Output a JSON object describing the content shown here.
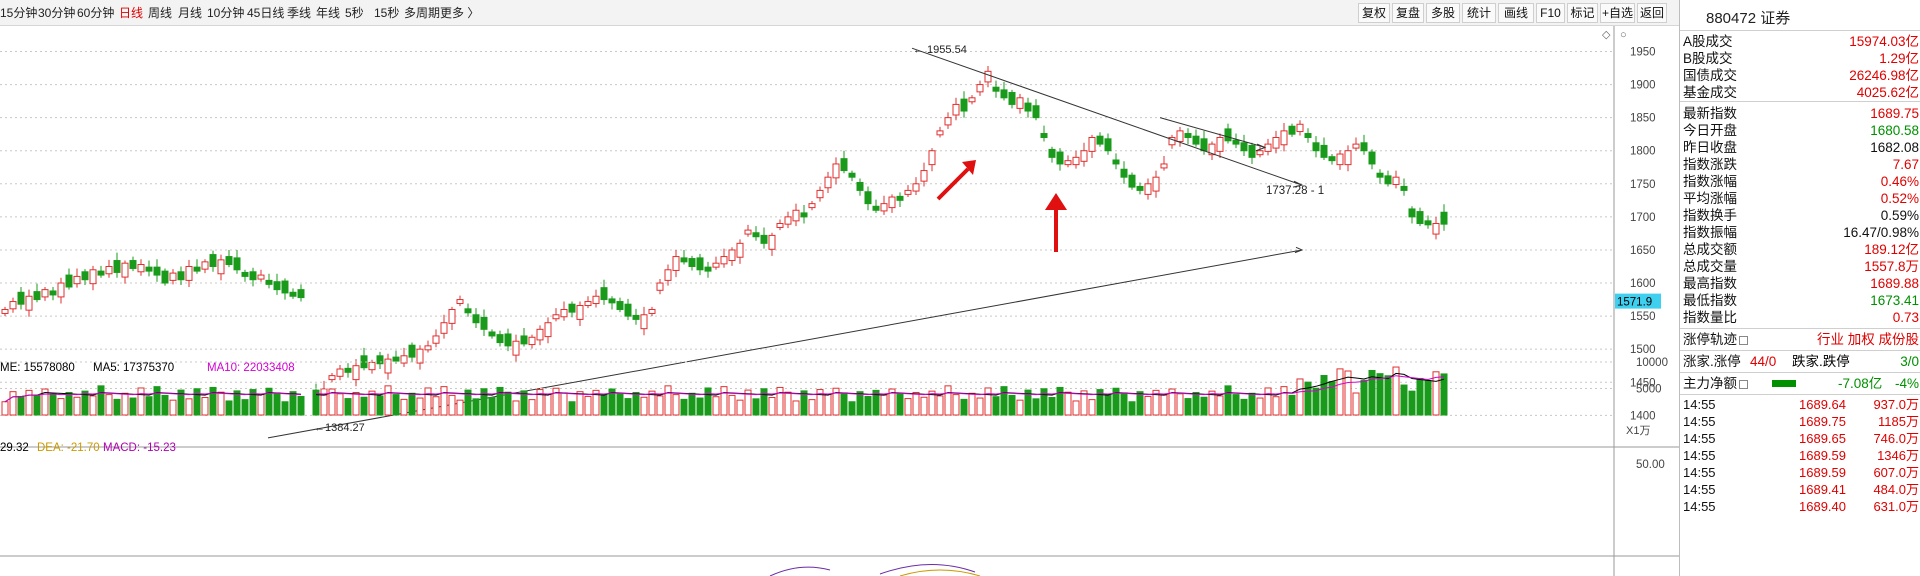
{
  "toolbar": {
    "periods": [
      "15分钟",
      "30分钟",
      "60分钟",
      "日线",
      "周线",
      "月线",
      "10分钟",
      "45日线",
      "季线",
      "年线",
      "5秒",
      "15秒",
      "多周期",
      "更多 〉"
    ],
    "active_period": "日线",
    "buttons": [
      "复权",
      "复盘",
      "多股",
      "统计",
      "画线",
      "F10",
      "标记",
      "+自选",
      "返回"
    ]
  },
  "chart": {
    "price_axis_ticks": [
      "1950",
      "1900",
      "1850",
      "1800",
      "1750",
      "1700",
      "1650",
      "1600",
      "1550",
      "1500",
      "1450",
      "1400"
    ],
    "current_price_label": "1571.9",
    "annotation_high": "1955.54",
    "annotation_low": "1384.27",
    "annotation_right": "1737.28 - 1",
    "volume_legend": {
      "vol": "ME: 15578080",
      "ma5": "MA5: 17375370",
      "ma10": "MA10: 22033408"
    },
    "volume_axis_ticks": [
      "10000",
      "5000"
    ],
    "volume_unit": "X1万",
    "macd_legend": {
      "dif": "29.32",
      "dea": "DEA: -21.70",
      "macd": "MACD: -15.23"
    },
    "macd_axis_tick": "50.00",
    "colors": {
      "up": "#e03030",
      "down": "#1a9a1a",
      "ma5": "#000000",
      "ma10": "#d200d2",
      "annotation_arrow": "#e01010",
      "price_tag": "#3fd0f0"
    }
  },
  "panel": {
    "title": "880472 证券",
    "rows1": [
      {
        "label": "A股成交",
        "value": "15974.03亿",
        "color": "red"
      },
      {
        "label": "B股成交",
        "value": "1.29亿",
        "color": "red"
      },
      {
        "label": "国债成交",
        "value": "26246.98亿",
        "color": "red"
      },
      {
        "label": "基金成交",
        "value": "4025.62亿",
        "color": "red"
      }
    ],
    "rows2": [
      {
        "label": "最新指数",
        "value": "1689.75",
        "color": "red"
      },
      {
        "label": "今日开盘",
        "value": "1680.58",
        "color": "green"
      },
      {
        "label": "昨日收盘",
        "value": "1682.08",
        "color": "black"
      },
      {
        "label": "指数涨跌",
        "value": "7.67",
        "color": "red"
      },
      {
        "label": "指数涨幅",
        "value": "0.46%",
        "color": "red"
      },
      {
        "label": "平均涨幅",
        "value": "0.52%",
        "color": "red"
      },
      {
        "label": "指数换手",
        "value": "0.59%",
        "color": "black"
      },
      {
        "label": "指数振幅",
        "value": "16.47/0.98%",
        "color": "black"
      },
      {
        "label": "总成交额",
        "value": "189.12亿",
        "color": "red"
      },
      {
        "label": "总成交量",
        "value": "1557.8万",
        "color": "red"
      },
      {
        "label": "最高指数",
        "value": "1689.88",
        "color": "red"
      },
      {
        "label": "最低指数",
        "value": "1673.41",
        "color": "green"
      },
      {
        "label": "指数量比",
        "value": "0.73",
        "color": "red"
      }
    ],
    "limit_track": {
      "label": "涨停轨迹",
      "links": "行业 加权 成份股"
    },
    "updown": {
      "label1": "涨家.涨停",
      "value1": "44/0",
      "label2": "跌家.跌停",
      "value2": "3/0"
    },
    "net_flow": {
      "label": "主力净额",
      "value": "-7.08亿",
      "pct": "-4%"
    },
    "trades": [
      {
        "time": "14:55",
        "price": "1689.64",
        "vol": "937.0万",
        "dir": "up"
      },
      {
        "time": "14:55",
        "price": "1689.75",
        "vol": "1185万",
        "dir": "up"
      },
      {
        "time": "14:55",
        "price": "1689.65",
        "vol": "746.0万",
        "dir": "up"
      },
      {
        "time": "14:55",
        "price": "1689.59",
        "vol": "1346万",
        "dir": "up"
      },
      {
        "time": "14:55",
        "price": "1689.59",
        "vol": "607.0万",
        "dir": "up"
      },
      {
        "time": "14:55",
        "price": "1689.41",
        "vol": "484.0万",
        "dir": "up"
      },
      {
        "time": "14:55",
        "price": "1689.40",
        "vol": "631.0万",
        "dir": "up"
      }
    ]
  }
}
